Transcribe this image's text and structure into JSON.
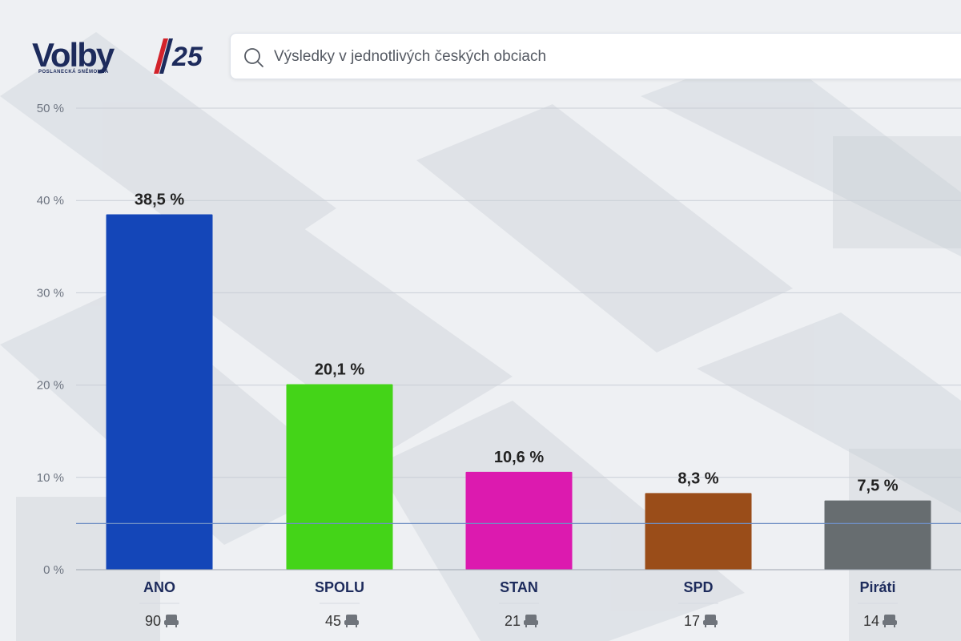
{
  "app": {
    "logo_word": "Volby",
    "logo_number": "25",
    "logo_subtitle": "POSLANECKÁ SNĚMOVNA",
    "brand_colors": {
      "navy": "#1d2b5c",
      "red": "#d3222a"
    }
  },
  "search": {
    "placeholder": "Výsledky v jednotlivých českých obciach",
    "icon": "search-icon"
  },
  "seat_icon": "seat-icon",
  "chart_data": {
    "type": "bar",
    "categories": [
      "ANO",
      "SPOLU",
      "STAN",
      "SPD",
      "Piráti"
    ],
    "values": [
      38.5,
      20.1,
      10.6,
      8.3,
      7.5
    ],
    "value_labels": [
      "38,5 %",
      "20,1 %",
      "10,6 %",
      "8,3 %",
      "7,5 %"
    ],
    "seats": [
      90,
      45,
      21,
      17,
      14
    ],
    "colors": [
      "#1446b8",
      "#44d418",
      "#dc1aaf",
      "#9a4d19",
      "#676d70"
    ],
    "ylim": [
      0,
      50
    ],
    "yticks": [
      0,
      10,
      20,
      30,
      40,
      50
    ],
    "ytick_labels": [
      "0 %",
      "10 %",
      "20 %",
      "30 %",
      "40 %",
      "50 %"
    ],
    "threshold": 5,
    "threshold_color": "#6f8fc4",
    "grid": true
  }
}
